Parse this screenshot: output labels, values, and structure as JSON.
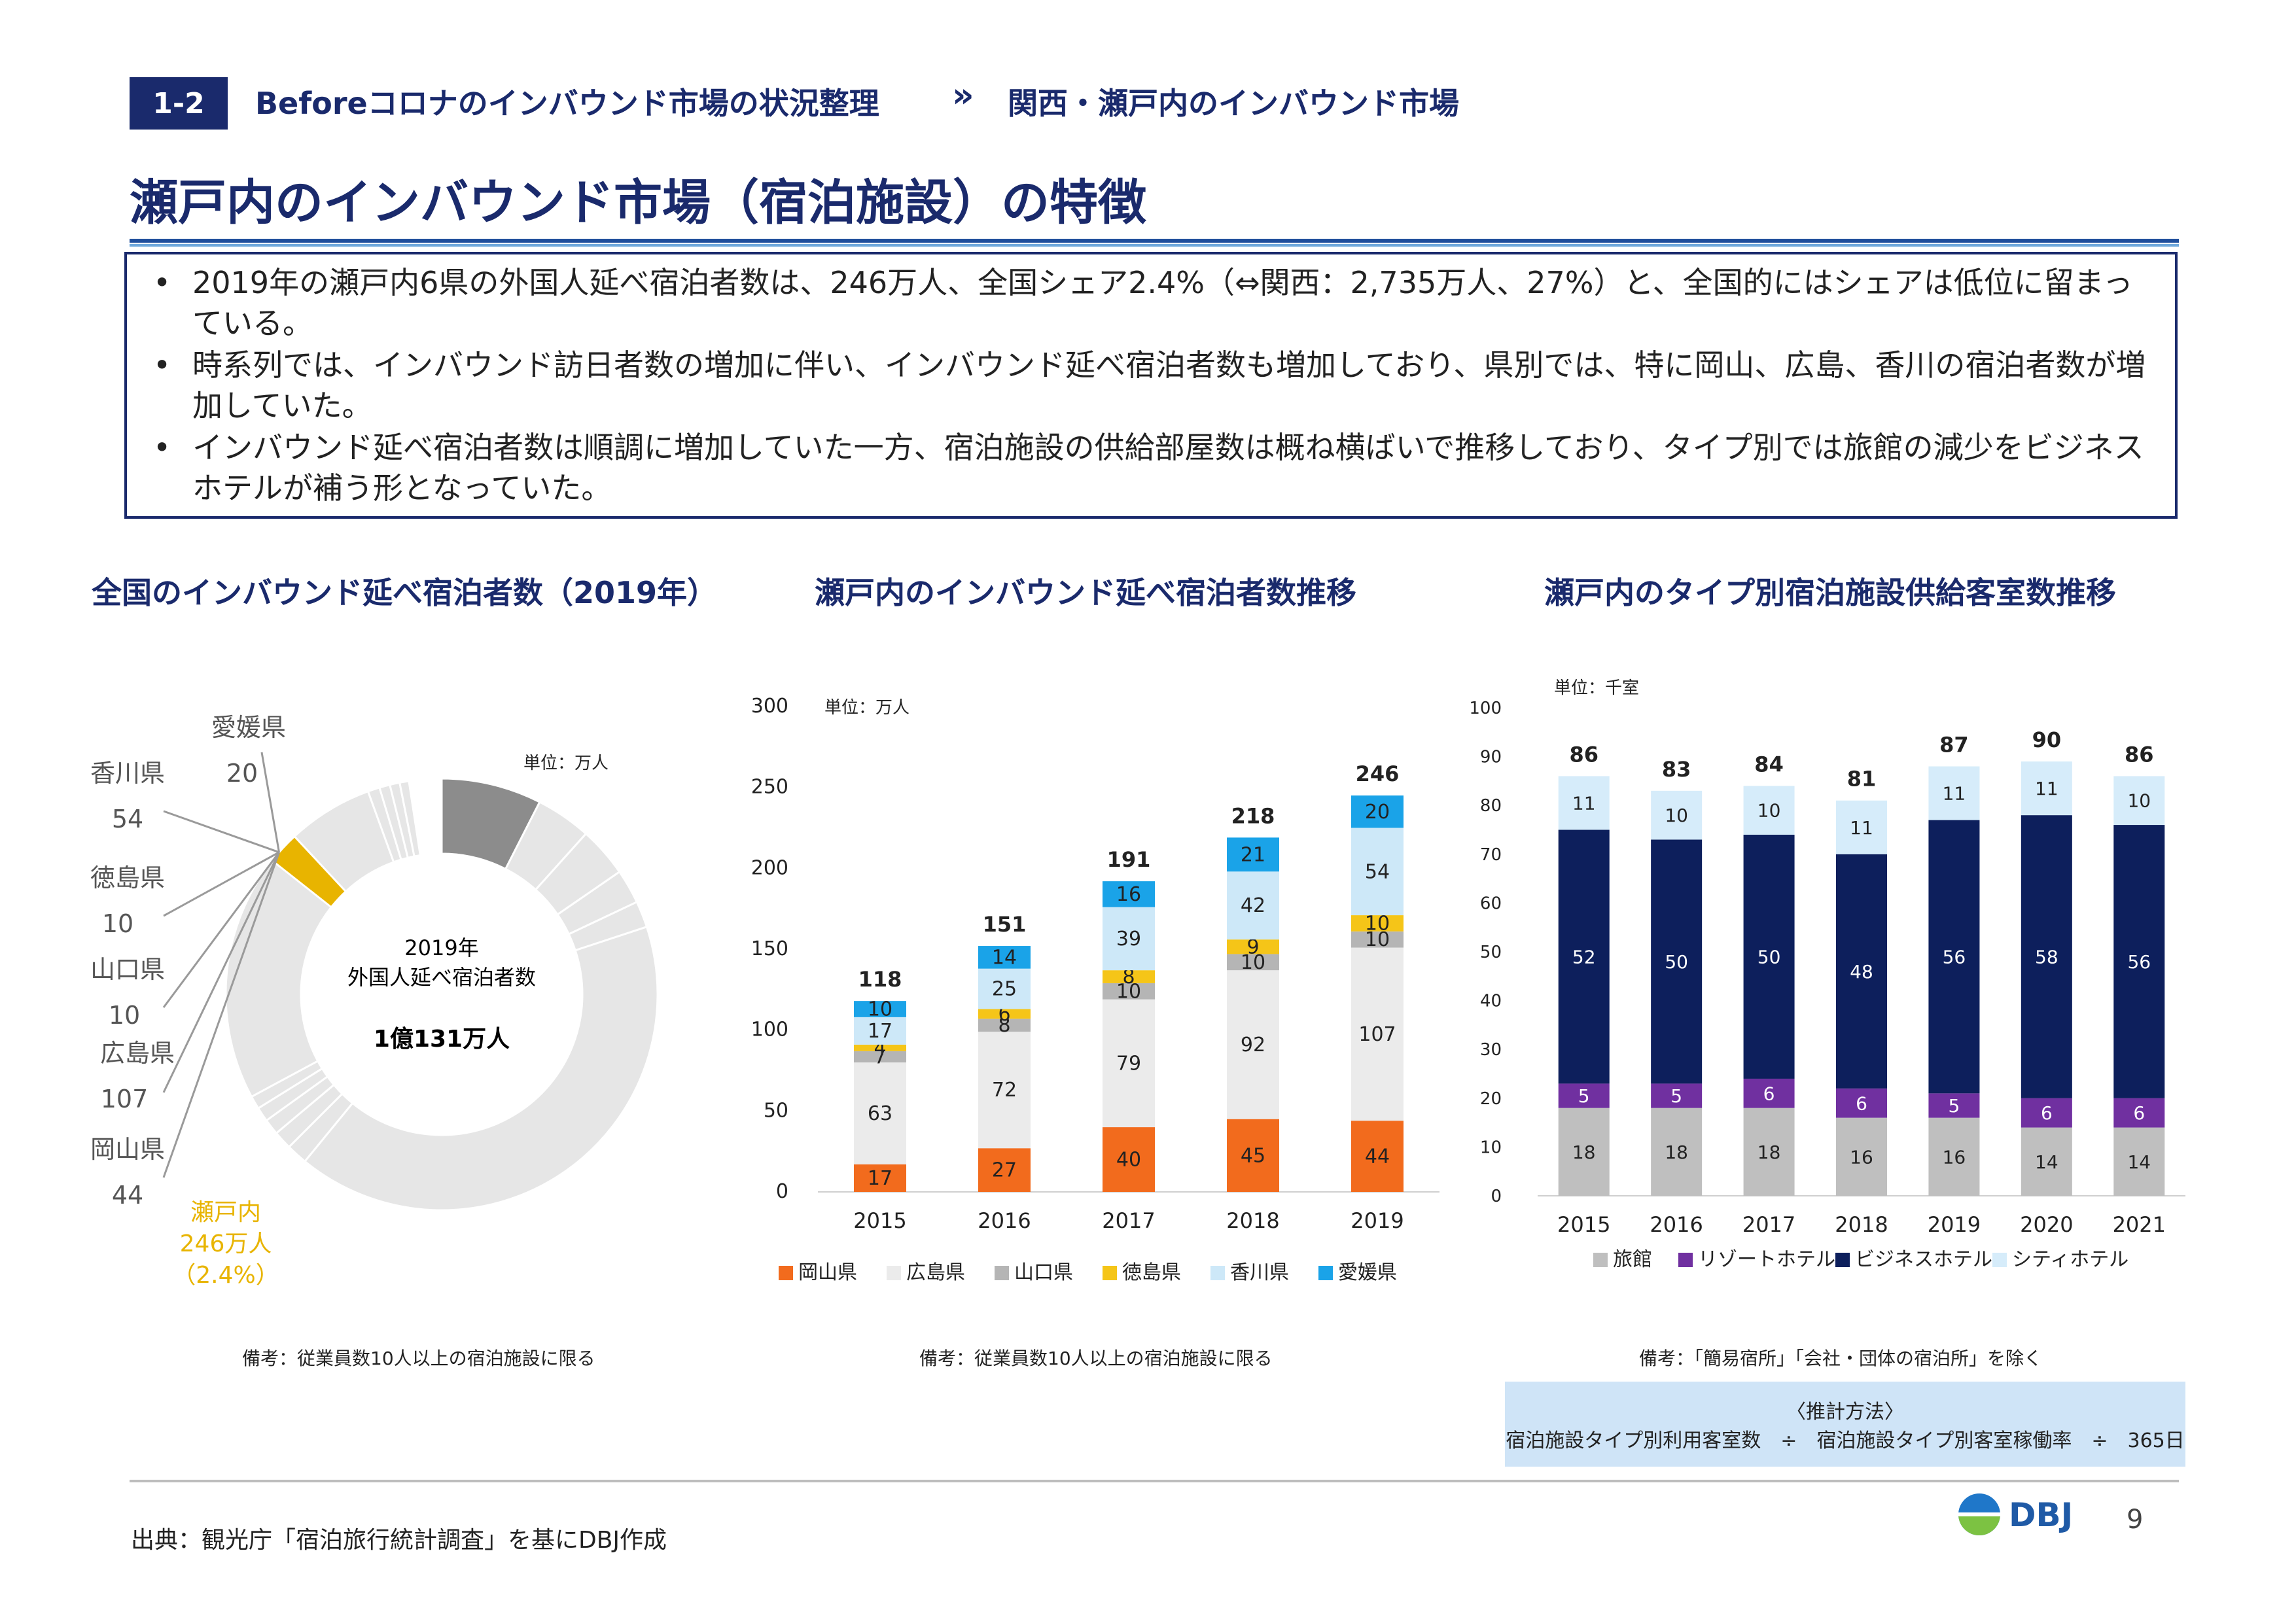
{
  "header": {
    "badge": "1-2",
    "section": "Beforeコロナのインバウンド市場の状況整理",
    "chevron": "»",
    "subsection": "関西・瀬戸内のインバウンド市場",
    "title": "瀬戸内のインバウンド市場（宿泊施設）の特徴"
  },
  "summary": {
    "bullet_char": "•",
    "bullets": [
      "2019年の瀬戸内6県の外国人延べ宿泊者数は、246万人、全国シェア2.4%（⇔関西：2,735万人、27%）と、全国的にはシェアは低位に留まっている。",
      "時系列では、インバウンド訪日者数の増加に伴い、インバウンド延べ宿泊者数も増加しており、県別では、特に岡山、広島、香川の宿泊者数が増加していた。",
      "インバウンド延べ宿泊者数は順調に増加していた一方、宿泊施設の供給部屋数は概ね横ばいで推移しており、タイプ別では旅館の減少をビジネスホテルが補う形となっていた。"
    ]
  },
  "charts_titles": {
    "donut": "全国のインバウンド延べ宿泊者数（2019年）",
    "bar1": "瀬戸内のインバウンド延べ宿泊者数推移",
    "bar2": "瀬戸内のタイプ別宿泊施設供給客室数推移"
  },
  "chart_data": [
    {
      "type": "pie",
      "unit": "単位：万人",
      "center_line1": "2019年",
      "center_line2": "外国人延べ宿泊者数",
      "center_total": "1億131万人",
      "labels": [
        {
          "name": "愛媛県",
          "value": "20"
        },
        {
          "name": "香川県",
          "value": "54"
        },
        {
          "name": "徳島県",
          "value": "10"
        },
        {
          "name": "山口県",
          "value": "10"
        },
        {
          "name": "広島県",
          "value": "107"
        },
        {
          "name": "岡山県",
          "value": "44"
        }
      ],
      "setouchi_label1": "瀬戸内",
      "setouchi_label2": "246万人",
      "setouchi_label3": "（2.4%）",
      "total": 10131,
      "setouchi": 246,
      "highlight_color": "#e8b400",
      "first_segment": 760,
      "first_color": "#8c8c8c",
      "other_color": "#e6e6e6",
      "note": "備考：従業員数10人以上の宿泊施設に限る"
    },
    {
      "type": "bar",
      "stacked": true,
      "unit": "単位：万人",
      "categories": [
        "2015",
        "2016",
        "2017",
        "2018",
        "2019"
      ],
      "ylim": [
        0,
        300
      ],
      "yticks": [
        0,
        50,
        100,
        150,
        200,
        250,
        300
      ],
      "series": [
        {
          "name": "岡山県",
          "color": "#f26b1d",
          "values": [
            17,
            27,
            40,
            45,
            44
          ]
        },
        {
          "name": "広島県",
          "color": "#ebebeb",
          "values": [
            63,
            72,
            79,
            92,
            107
          ]
        },
        {
          "name": "山口県",
          "color": "#b5b5b5",
          "values": [
            7,
            8,
            10,
            10,
            10
          ]
        },
        {
          "name": "徳島県",
          "color": "#f5c518",
          "values": [
            4,
            6,
            8,
            9,
            10
          ]
        },
        {
          "name": "香川県",
          "color": "#cde8f8",
          "values": [
            17,
            25,
            39,
            42,
            54
          ]
        },
        {
          "name": "愛媛県",
          "color": "#1aa3e8",
          "values": [
            10,
            14,
            16,
            21,
            20
          ]
        }
      ],
      "totals": [
        "118",
        "151",
        "191",
        "218",
        "246"
      ],
      "note": "備考：従業員数10人以上の宿泊施設に限る"
    },
    {
      "type": "bar",
      "stacked": true,
      "unit": "単位：千室",
      "categories": [
        "2015",
        "2016",
        "2017",
        "2018",
        "2019",
        "2020",
        "2021"
      ],
      "ylim": [
        0,
        100
      ],
      "yticks": [
        0,
        10,
        20,
        30,
        40,
        50,
        60,
        70,
        80,
        90,
        100
      ],
      "series": [
        {
          "name": "旅館",
          "color": "#bfbfbf",
          "values": [
            18,
            18,
            18,
            16,
            16,
            14,
            14
          ]
        },
        {
          "name": "リゾートホテル",
          "color": "#7030a0",
          "values": [
            5,
            5,
            6,
            6,
            5,
            6,
            6
          ]
        },
        {
          "name": "ビジネスホテル",
          "color": "#0d1f5c",
          "values": [
            52,
            50,
            50,
            48,
            56,
            58,
            56
          ]
        },
        {
          "name": "シティホテル",
          "color": "#d6ecfa",
          "values": [
            11,
            10,
            10,
            11,
            11,
            11,
            10
          ]
        }
      ],
      "totals": [
        "86",
        "83",
        "84",
        "81",
        "87",
        "90",
        "86"
      ],
      "note": "備考：「簡易宿所」「会社・団体の宿泊所」を除く"
    }
  ],
  "method": {
    "title": "〈推計方法〉",
    "formula": "宿泊施設タイプ別利用客室数　÷　宿泊施設タイプ別客室稼働率　÷　365日"
  },
  "footer": {
    "source": "出典：観光庁「宿泊旅行統計調査」を基にDBJ作成",
    "logo_text": "DBJ",
    "page": "9"
  }
}
